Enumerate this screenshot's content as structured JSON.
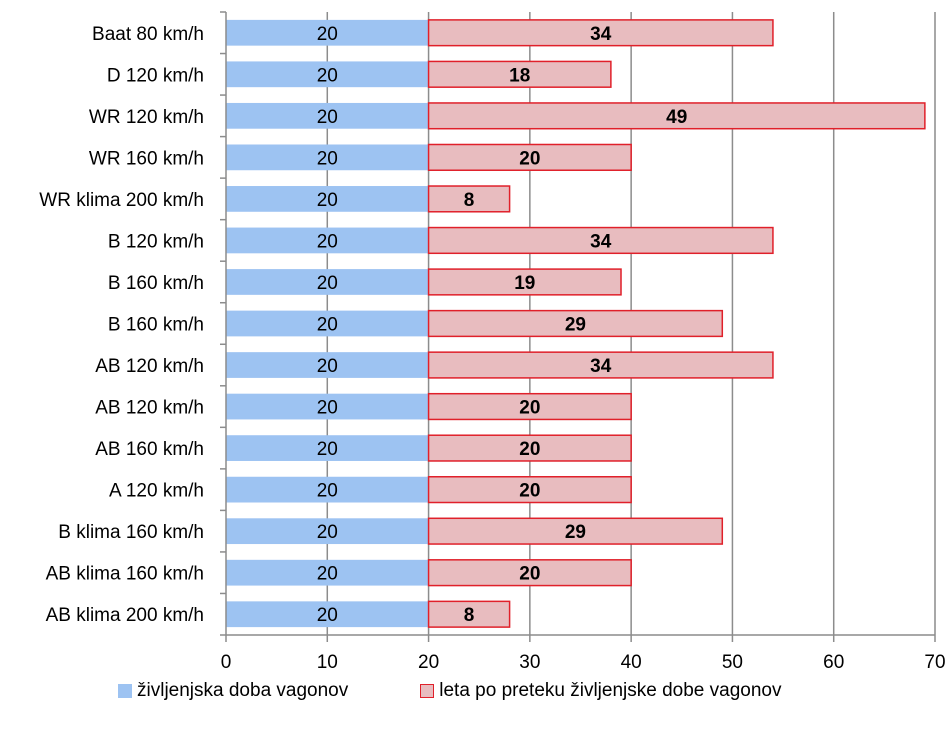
{
  "chart_data": {
    "type": "bar",
    "orientation": "horizontal",
    "stacked": true,
    "categories": [
      "Baat 80 km/h",
      "D 120 km/h",
      "WR 120 km/h",
      "WR 160 km/h",
      "WR klima 200 km/h",
      "B 120 km/h",
      "B 160 km/h",
      "B 160 km/h",
      "AB 120 km/h",
      "AB 120 km/h",
      "AB 160 km/h",
      "A 120 km/h",
      "B klima 160 km/h",
      "AB klima 160 km/h",
      "AB klima 200 km/h"
    ],
    "series": [
      {
        "name": "življenjska doba vagonov",
        "color": "#9dc3f2",
        "values": [
          20,
          20,
          20,
          20,
          20,
          20,
          20,
          20,
          20,
          20,
          20,
          20,
          20,
          20,
          20
        ]
      },
      {
        "name": "leta po preteku življenjske dobe vagonov",
        "color": "#e8bcbf",
        "edge": "#e0202a",
        "values": [
          34,
          18,
          49,
          20,
          8,
          34,
          19,
          29,
          34,
          20,
          20,
          20,
          29,
          20,
          8
        ]
      }
    ],
    "xlim": [
      0,
      70
    ],
    "xticks": [
      "0",
      "10",
      "20",
      "30",
      "40",
      "50",
      "60",
      "70"
    ],
    "grid": "vertical",
    "legend": "bottom"
  }
}
